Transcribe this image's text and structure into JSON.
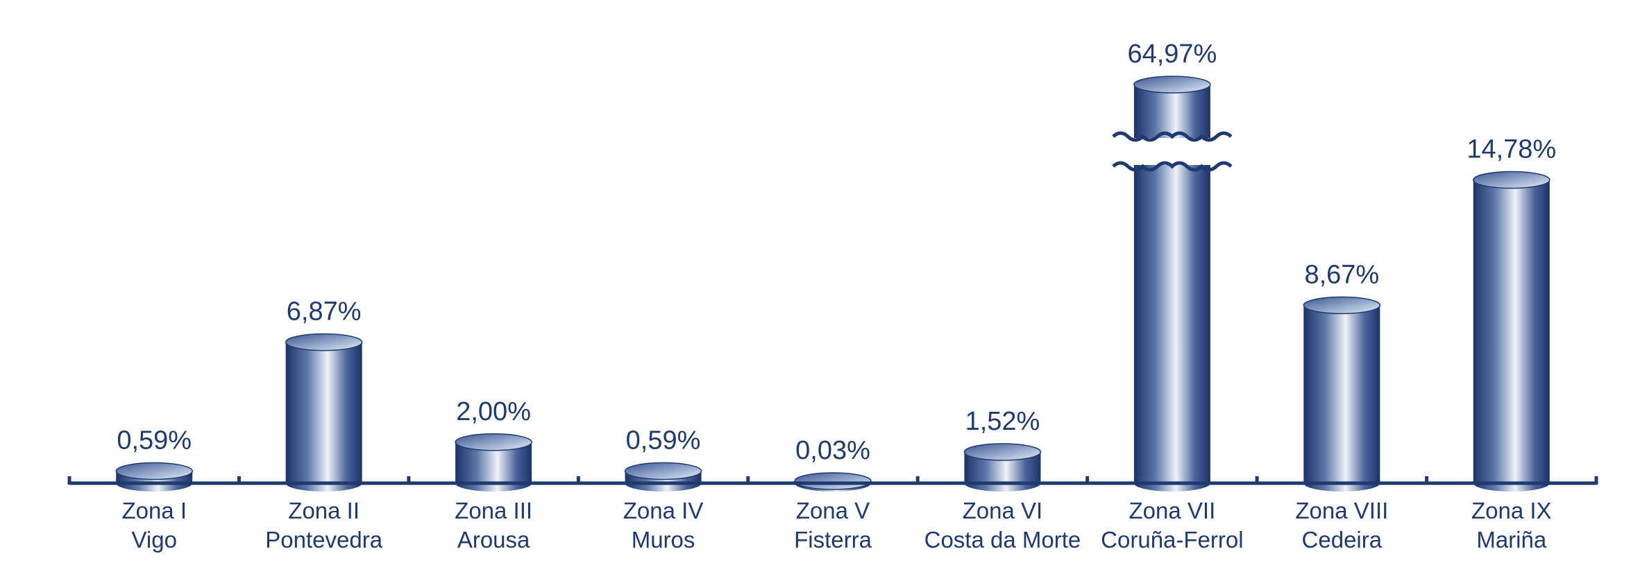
{
  "chart_data": {
    "type": "bar",
    "title": "",
    "xlabel": "",
    "ylabel": "",
    "bar_style": "cylinder",
    "axis_break_on": "Zona VII\nCoruña-Ferrol",
    "color": "#1f3a6e",
    "categories": [
      "Zona I\nVigo",
      "Zona II\nPontevedra",
      "Zona III\nArousa",
      "Zona IV\nMuros",
      "Zona V\nFisterra",
      "Zona VI\nCosta da Morte",
      "Zona VII\nCoruña-Ferrol",
      "Zona VIII\nCedeira",
      "Zona IX\nMariña"
    ],
    "values": [
      0.59,
      6.87,
      2.0,
      0.59,
      0.03,
      1.52,
      64.97,
      8.67,
      14.78
    ],
    "value_labels": [
      "0,59%",
      "6,87%",
      "2,00%",
      "0,59%",
      "0,03%",
      "1,52%",
      "64,97%",
      "8,67%",
      "14,78%"
    ],
    "ylim": [
      0,
      16
    ]
  }
}
